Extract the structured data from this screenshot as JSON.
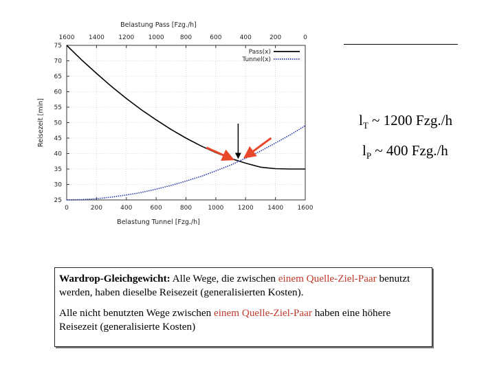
{
  "chart_data": {
    "type": "line",
    "title": "",
    "x_bottom_label": "Belastung Tunnel [Fzg./h]",
    "x_top_label": "Belastung Pass [Fzg./h]",
    "ylabel": "Reisezeit [min]",
    "xlim": [
      0,
      1600
    ],
    "ylim": [
      25,
      75
    ],
    "x_ticks": [
      "0",
      "200",
      "400",
      "600",
      "800",
      "1000",
      "1200",
      "1400",
      "1600"
    ],
    "x_top_ticks": [
      "1600",
      "1400",
      "1200",
      "1000",
      "800",
      "600",
      "400",
      "200",
      "0"
    ],
    "y_ticks": [
      "25",
      "30",
      "35",
      "40",
      "45",
      "50",
      "55",
      "60",
      "65",
      "70",
      "75"
    ],
    "grid": true,
    "legend_position": "top-right",
    "series": [
      {
        "name": "Pass(x)",
        "color": "#000000",
        "style": "solid",
        "x": [
          0,
          100,
          200,
          300,
          400,
          500,
          600,
          700,
          800,
          900,
          1000,
          1100,
          1200,
          1300,
          1400,
          1500,
          1600
        ],
        "y": [
          75,
          70.3,
          65.9,
          61.7,
          57.8,
          54.2,
          50.9,
          47.8,
          45,
          42.5,
          40.3,
          38.4,
          36.9,
          35.6,
          35.1,
          35,
          35
        ]
      },
      {
        "name": "Tunnel(x)",
        "color": "#2233aa",
        "style": "dotted",
        "x": [
          0,
          100,
          200,
          300,
          400,
          500,
          600,
          700,
          800,
          900,
          1000,
          1100,
          1200,
          1300,
          1400,
          1500,
          1600
        ],
        "y": [
          25,
          25.1,
          25.4,
          25.9,
          26.6,
          27.4,
          28.5,
          29.7,
          31.1,
          32.6,
          34.4,
          36.3,
          38.5,
          40.8,
          43.4,
          46.1,
          49
        ]
      }
    ],
    "annotations": [
      {
        "type": "arrow",
        "color": "#e8472a",
        "points_to_x": 1150
      },
      {
        "type": "arrow",
        "color": "#e8472a",
        "points_to_x": 1150
      },
      {
        "type": "arrow",
        "color": "#000000",
        "points_to_x": 1150
      }
    ]
  },
  "notes": {
    "eq1_var": "l",
    "eq1_sub": "T",
    "eq1_rest": " ~ 1200 Fzg./h",
    "eq2_var": "l",
    "eq2_sub": "P",
    "eq2_rest": " ~ 400 Fzg./h"
  },
  "textbox": {
    "p1_bold": "Wardrop-Gleichgewicht:",
    "p1_a": " Alle Wege, die zwischen ",
    "p1_hl": "einem Quelle-Ziel-Paar",
    "p1_b": " benutzt werden, haben dieselbe Reisezeit (generalisierten Kosten).",
    "p2_a": "Alle nicht benutzten Wege zwischen ",
    "p2_hl": "einem Quelle-Ziel-Paar",
    "p2_b": " haben eine höhere Reisezeit (generalisierte Kosten)"
  }
}
